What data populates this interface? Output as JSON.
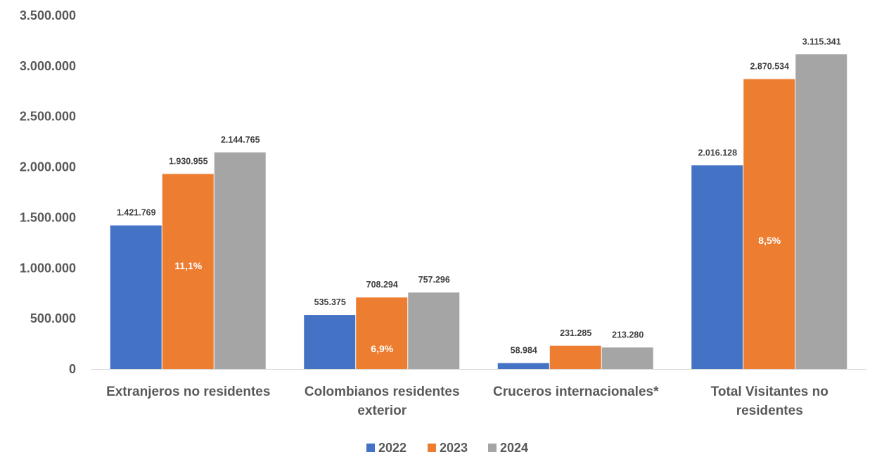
{
  "chart_data": {
    "type": "bar",
    "categories": [
      [
        "Extranjeros no residentes"
      ],
      [
        "Colombianos residentes",
        "exterior"
      ],
      [
        "Cruceros internacionales*"
      ],
      [
        "Total Visitantes no",
        "residentes"
      ]
    ],
    "series": [
      {
        "name": "2022",
        "color": "#4472C4",
        "values": [
          1421769,
          535375,
          58984,
          2016128
        ],
        "labels": [
          "1.421.769",
          "535.375",
          "58.984",
          "2.016.128"
        ]
      },
      {
        "name": "2023",
        "color": "#ED7D31",
        "values": [
          1930955,
          708294,
          231285,
          2870534
        ],
        "labels": [
          "1.930.955",
          "708.294",
          "231.285",
          "2.870.534"
        ]
      },
      {
        "name": "2024",
        "color": "#A5A5A5",
        "values": [
          2144765,
          757296,
          213280,
          3115341
        ],
        "labels": [
          "2.144.765",
          "757.296",
          "213.280",
          "3.115.341"
        ]
      }
    ],
    "growth_labels": [
      "11,1%",
      "6,9%",
      "",
      "8,5%"
    ],
    "ylim": [
      0,
      3500000
    ],
    "yticks": [
      0,
      500000,
      1000000,
      1500000,
      2000000,
      2500000,
      3000000,
      3500000
    ],
    "ytick_labels": [
      "0",
      "500.000",
      "1.000.000",
      "1.500.000",
      "2.000.000",
      "2.500.000",
      "3.000.000",
      "3.500.000"
    ],
    "grid": false,
    "legend_position": "bottom",
    "title": "",
    "xlabel": "",
    "ylabel": ""
  }
}
